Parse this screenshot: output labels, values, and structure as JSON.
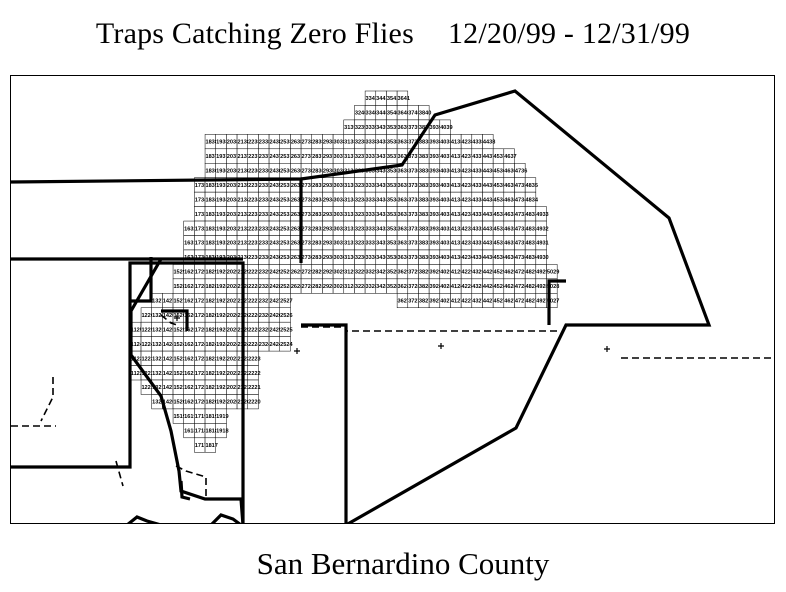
{
  "figure": {
    "title_text": "Traps Catching Zero Flies",
    "date_range": "12/20/99 - 12/31/99",
    "caption": "San Bernardino County"
  },
  "map": {
    "grid_rows": [
      {
        "row": 41,
        "cols": [
          33,
          34,
          35,
          36
        ]
      },
      {
        "row": 40,
        "cols": [
          32,
          33,
          34,
          35,
          36,
          37,
          38
        ]
      },
      {
        "row": 39,
        "cols": [
          31,
          32,
          33,
          34,
          35,
          36,
          37,
          38,
          39,
          40
        ]
      },
      {
        "row": 38,
        "cols": [
          18,
          19,
          20,
          21,
          22,
          23,
          24,
          25,
          26,
          27,
          28,
          29,
          30,
          31,
          32,
          33,
          34,
          35,
          36,
          37,
          38,
          39,
          40,
          41,
          42,
          43,
          44
        ]
      },
      {
        "row": 37,
        "cols": [
          18,
          19,
          20,
          21,
          22,
          23,
          24,
          25,
          26,
          27,
          28,
          29,
          30,
          31,
          32,
          33,
          34,
          35,
          36,
          37,
          38,
          39,
          40,
          41,
          42,
          43,
          44,
          45,
          46
        ]
      },
      {
        "row": 36,
        "cols": [
          18,
          19,
          20,
          21,
          22,
          23,
          24,
          25,
          26,
          27,
          28,
          29,
          30,
          31,
          32,
          33,
          34,
          35,
          36,
          37,
          38,
          39,
          40,
          41,
          42,
          43,
          44,
          45,
          46,
          47
        ]
      },
      {
        "row": 35,
        "cols": [
          17,
          18,
          19,
          20,
          21,
          22,
          23,
          24,
          25,
          26,
          27,
          28,
          29,
          30,
          31,
          32,
          33,
          34,
          35,
          36,
          37,
          38,
          39,
          40,
          41,
          42,
          43,
          44,
          45,
          46,
          47,
          48
        ]
      },
      {
        "row": 34,
        "cols": [
          17,
          18,
          19,
          20,
          21,
          22,
          23,
          24,
          25,
          26,
          27,
          28,
          29,
          30,
          31,
          32,
          33,
          34,
          35,
          36,
          37,
          38,
          39,
          40,
          41,
          42,
          43,
          44,
          45,
          46,
          47,
          48
        ]
      },
      {
        "row": 33,
        "cols": [
          17,
          18,
          19,
          20,
          21,
          22,
          23,
          24,
          25,
          26,
          27,
          28,
          29,
          30,
          31,
          32,
          33,
          34,
          35,
          36,
          37,
          38,
          39,
          40,
          41,
          42,
          43,
          44,
          45,
          46,
          47,
          48,
          49
        ]
      },
      {
        "row": 32,
        "cols": [
          16,
          17,
          18,
          19,
          20,
          21,
          22,
          23,
          24,
          25,
          26,
          27,
          28,
          29,
          30,
          31,
          32,
          33,
          34,
          35,
          36,
          37,
          38,
          39,
          40,
          41,
          42,
          43,
          44,
          45,
          46,
          47,
          48,
          49
        ]
      },
      {
        "row": 31,
        "cols": [
          16,
          17,
          18,
          19,
          20,
          21,
          22,
          23,
          24,
          25,
          26,
          27,
          28,
          29,
          30,
          31,
          32,
          33,
          34,
          35,
          36,
          37,
          38,
          39,
          40,
          41,
          42,
          43,
          44,
          45,
          46,
          47,
          48,
          49
        ]
      },
      {
        "row": 30,
        "cols": [
          16,
          17,
          18,
          19,
          20,
          21,
          22,
          23,
          24,
          25,
          26,
          27,
          28,
          29,
          30,
          31,
          32,
          33,
          34,
          35,
          36,
          37,
          38,
          39,
          40,
          41,
          42,
          43,
          44,
          45,
          46,
          47,
          48,
          49
        ]
      },
      {
        "row": 29,
        "cols": [
          15,
          16,
          17,
          18,
          19,
          20,
          21,
          22,
          23,
          24,
          25,
          26,
          27,
          28,
          29,
          30,
          31,
          32,
          33,
          34,
          35,
          36,
          37,
          38,
          39,
          40,
          41,
          42,
          43,
          44,
          45,
          46,
          47,
          48,
          49,
          50
        ]
      },
      {
        "row": 28,
        "cols": [
          15,
          16,
          17,
          18,
          19,
          20,
          21,
          22,
          23,
          24,
          25,
          26,
          27,
          28,
          29,
          30,
          31,
          32,
          33,
          34,
          35,
          36,
          37,
          38,
          39,
          40,
          41,
          42,
          43,
          44,
          45,
          46,
          47,
          48,
          49,
          50
        ]
      },
      {
        "row": 27,
        "cols": [
          13,
          14,
          15,
          16,
          17,
          18,
          19,
          20,
          21,
          22,
          23,
          24,
          25,
          36,
          37,
          38,
          39,
          40,
          41,
          42,
          43,
          44,
          45,
          46,
          47,
          48,
          49,
          50
        ]
      },
      {
        "row": 26,
        "cols": [
          12,
          13,
          14,
          15,
          16,
          17,
          18,
          19,
          20,
          21,
          22,
          23,
          24,
          25
        ]
      },
      {
        "row": 25,
        "cols": [
          11,
          12,
          13,
          14,
          15,
          16,
          17,
          18,
          19,
          20,
          21,
          22,
          23,
          24,
          25
        ]
      },
      {
        "row": 24,
        "cols": [
          11,
          12,
          13,
          14,
          15,
          16,
          17,
          18,
          19,
          20,
          21,
          22,
          23,
          24,
          25
        ]
      },
      {
        "row": 23,
        "cols": [
          11,
          12,
          13,
          14,
          15,
          16,
          17,
          18,
          19,
          20,
          21,
          22
        ]
      },
      {
        "row": 22,
        "cols": [
          11,
          12,
          13,
          14,
          15,
          16,
          17,
          18,
          19,
          20,
          21,
          22
        ]
      },
      {
        "row": 21,
        "cols": [
          12,
          13,
          14,
          15,
          16,
          17,
          18,
          19,
          20,
          21,
          22
        ]
      },
      {
        "row": 20,
        "cols": [
          13,
          14,
          15,
          16,
          17,
          18,
          19,
          20,
          21,
          22
        ]
      },
      {
        "row": 19,
        "cols": [
          15,
          16,
          17,
          18,
          19
        ]
      },
      {
        "row": 18,
        "cols": [
          16,
          17,
          18,
          19
        ]
      },
      {
        "row": 17,
        "cols": [
          17,
          18
        ]
      }
    ],
    "line_color": "#000000",
    "background_color": "#ffffff"
  }
}
